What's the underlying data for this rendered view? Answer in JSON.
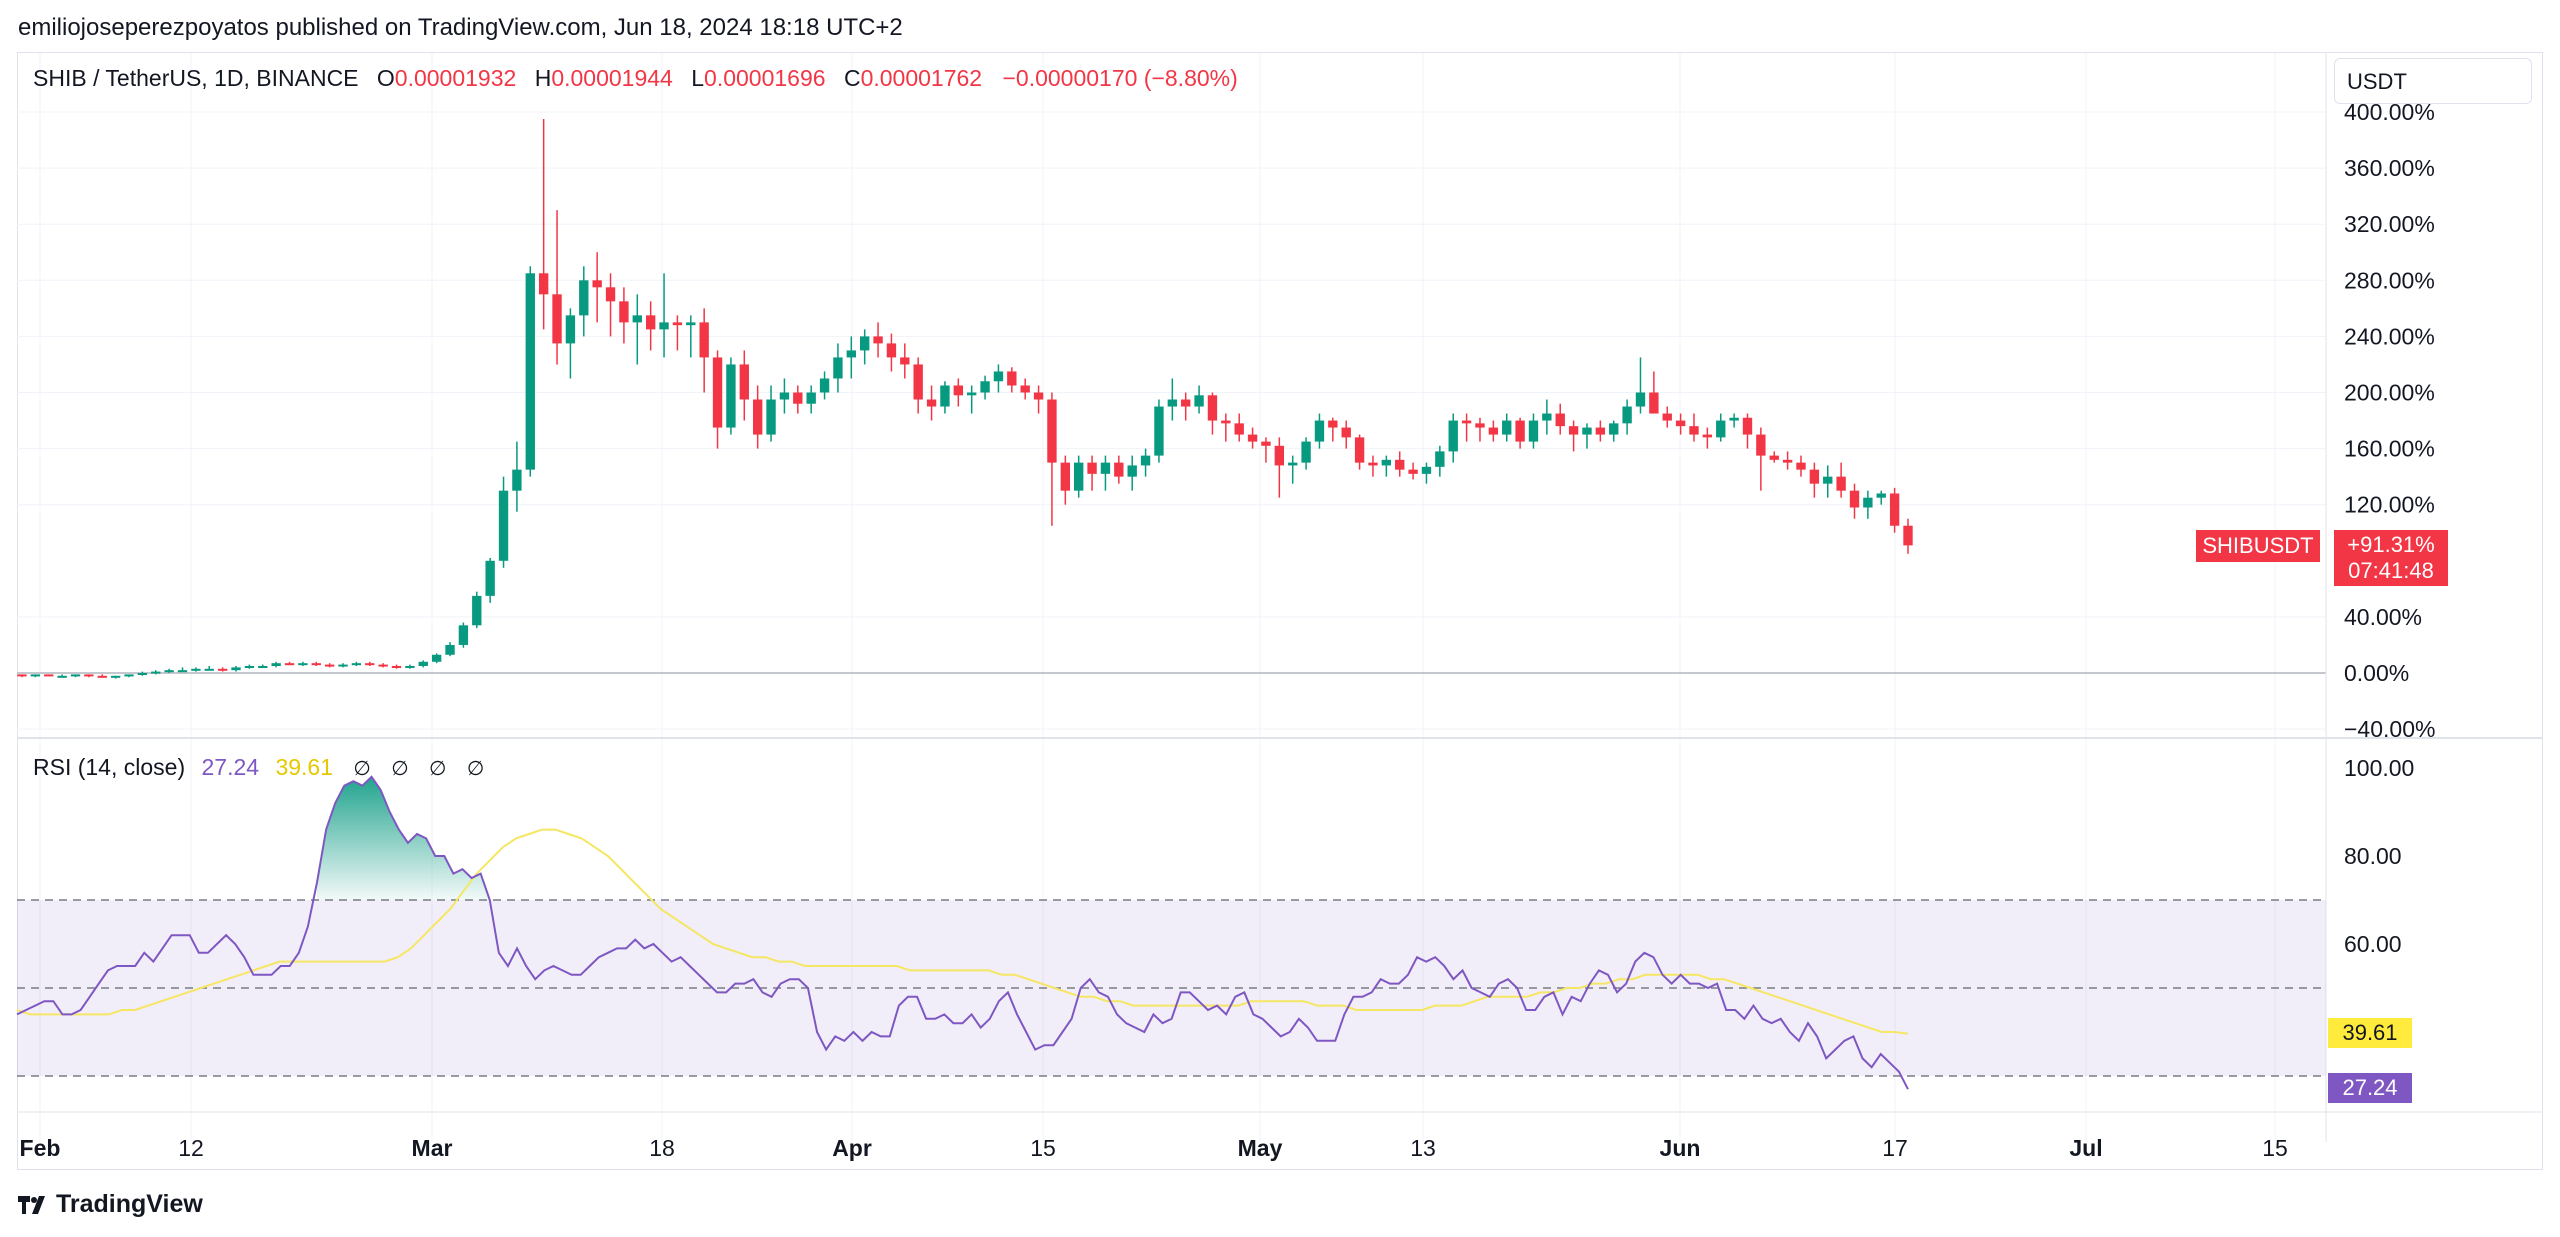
{
  "header": {
    "published": "emiliojoseperezpoyatos published on TradingView.com, Jun 18, 2024 18:18 UTC+2"
  },
  "legend": {
    "symbol": "SHIB / TetherUS, 1D, BINANCE",
    "o_key": "O",
    "o_val": "0.00001932",
    "h_key": "H",
    "h_val": "0.00001944",
    "l_key": "L",
    "l_val": "0.00001696",
    "c_key": "C",
    "c_val": "0.00001762",
    "change": "−0.00000170 (−8.80%)"
  },
  "currency": "USDT",
  "price_tag": {
    "symbol": "SHIBUSDT",
    "pct": "+91.31%",
    "countdown": "07:41:48"
  },
  "rsi_legend": {
    "name": "RSI (14, close)",
    "rsi_val": "27.24",
    "ma_val": "39.61",
    "placeholders": [
      "∅",
      "∅",
      "∅",
      "∅"
    ]
  },
  "rsi_tags": {
    "ma": "39.61",
    "rsi": "27.24"
  },
  "footer": {
    "brand": "TradingView"
  },
  "colors": {
    "up": "#089981",
    "down": "#f23645",
    "rsi": "#7e57c2",
    "rsi_ma": "#f5e663",
    "band": "#7e57c2"
  },
  "chart_data": [
    {
      "type": "candlestick",
      "title": "SHIB / TetherUS, 1D, BINANCE",
      "y_unit": "%",
      "y_ticks": [
        "400.00%",
        "360.00%",
        "320.00%",
        "280.00%",
        "240.00%",
        "200.00%",
        "160.00%",
        "120.00%",
        "40.00%",
        "0.00%",
        "−40.00%"
      ],
      "x_ticks": [
        "Feb",
        "12",
        "Mar",
        "18",
        "Apr",
        "15",
        "May",
        "13",
        "Jun",
        "17",
        "Jul",
        "15"
      ],
      "candles": [
        [
          -1,
          -1,
          -3,
          -2
        ],
        [
          -2,
          -1,
          -3,
          -1
        ],
        [
          -1,
          -1,
          -2,
          -2
        ],
        [
          -2,
          -1,
          -3,
          -2
        ],
        [
          -2,
          -1,
          -3,
          -1
        ],
        [
          -1,
          -1,
          -3,
          -2
        ],
        [
          -2,
          -1,
          -3,
          -3
        ],
        [
          -3,
          -2,
          -4,
          -2
        ],
        [
          -2,
          -1,
          -3,
          -1
        ],
        [
          -1,
          1,
          -2,
          0
        ],
        [
          0,
          2,
          -1,
          1
        ],
        [
          1,
          3,
          0,
          2
        ],
        [
          2,
          4,
          1,
          2
        ],
        [
          2,
          4,
          1,
          3
        ],
        [
          3,
          5,
          2,
          3
        ],
        [
          3,
          4,
          1,
          2
        ],
        [
          2,
          5,
          1,
          4
        ],
        [
          4,
          6,
          3,
          5
        ],
        [
          5,
          6,
          4,
          5
        ],
        [
          5,
          8,
          4,
          7
        ],
        [
          7,
          8,
          6,
          6
        ],
        [
          6,
          8,
          5,
          7
        ],
        [
          7,
          8,
          5,
          6
        ],
        [
          6,
          7,
          4,
          5
        ],
        [
          5,
          7,
          4,
          6
        ],
        [
          6,
          8,
          5,
          7
        ],
        [
          7,
          8,
          5,
          6
        ],
        [
          6,
          7,
          4,
          5
        ],
        [
          5,
          6,
          3,
          4
        ],
        [
          4,
          6,
          3,
          5
        ],
        [
          5,
          9,
          4,
          8
        ],
        [
          8,
          14,
          7,
          13
        ],
        [
          13,
          22,
          12,
          20
        ],
        [
          20,
          36,
          18,
          34
        ],
        [
          34,
          58,
          32,
          55
        ],
        [
          55,
          82,
          50,
          80
        ],
        [
          80,
          140,
          75,
          130
        ],
        [
          130,
          165,
          115,
          145
        ],
        [
          145,
          290,
          140,
          285
        ],
        [
          285,
          395,
          245,
          270
        ],
        [
          270,
          330,
          220,
          235
        ],
        [
          235,
          260,
          210,
          255
        ],
        [
          255,
          290,
          240,
          280
        ],
        [
          280,
          300,
          250,
          275
        ],
        [
          275,
          285,
          240,
          265
        ],
        [
          265,
          275,
          235,
          250
        ],
        [
          250,
          270,
          220,
          255
        ],
        [
          255,
          265,
          230,
          245
        ],
        [
          245,
          285,
          225,
          250
        ],
        [
          250,
          255,
          230,
          248
        ],
        [
          248,
          255,
          225,
          250
        ],
        [
          250,
          260,
          200,
          225
        ],
        [
          225,
          230,
          160,
          175
        ],
        [
          175,
          225,
          170,
          220
        ],
        [
          220,
          230,
          180,
          195
        ],
        [
          195,
          205,
          160,
          170
        ],
        [
          170,
          205,
          165,
          195
        ],
        [
          195,
          210,
          185,
          200
        ],
        [
          200,
          205,
          185,
          192
        ],
        [
          192,
          205,
          185,
          200
        ],
        [
          200,
          215,
          195,
          210
        ],
        [
          210,
          235,
          200,
          225
        ],
        [
          225,
          240,
          210,
          230
        ],
        [
          230,
          245,
          220,
          240
        ],
        [
          240,
          250,
          225,
          235
        ],
        [
          235,
          242,
          215,
          225
        ],
        [
          225,
          235,
          210,
          220
        ],
        [
          220,
          225,
          185,
          195
        ],
        [
          195,
          205,
          180,
          190
        ],
        [
          190,
          208,
          185,
          205
        ],
        [
          205,
          210,
          190,
          198
        ],
        [
          198,
          205,
          185,
          200
        ],
        [
          200,
          212,
          195,
          208
        ],
        [
          208,
          220,
          200,
          215
        ],
        [
          215,
          218,
          200,
          205
        ],
        [
          205,
          210,
          195,
          200
        ],
        [
          200,
          205,
          185,
          195
        ],
        [
          195,
          200,
          105,
          150
        ],
        [
          150,
          155,
          120,
          130
        ],
        [
          130,
          155,
          125,
          150
        ],
        [
          150,
          155,
          130,
          142
        ],
        [
          142,
          155,
          130,
          150
        ],
        [
          150,
          155,
          135,
          140
        ],
        [
          140,
          155,
          130,
          148
        ],
        [
          148,
          160,
          140,
          155
        ],
        [
          155,
          195,
          150,
          190
        ],
        [
          190,
          210,
          180,
          195
        ],
        [
          195,
          200,
          180,
          190
        ],
        [
          190,
          205,
          185,
          198
        ],
        [
          198,
          200,
          170,
          180
        ],
        [
          180,
          185,
          165,
          178
        ],
        [
          178,
          185,
          165,
          170
        ],
        [
          170,
          175,
          160,
          165
        ],
        [
          165,
          168,
          150,
          162
        ],
        [
          162,
          168,
          125,
          148
        ],
        [
          148,
          155,
          135,
          150
        ],
        [
          150,
          168,
          145,
          165
        ],
        [
          165,
          185,
          160,
          180
        ],
        [
          180,
          182,
          165,
          175
        ],
        [
          175,
          180,
          160,
          168
        ],
        [
          168,
          170,
          145,
          150
        ],
        [
          150,
          155,
          140,
          148
        ],
        [
          148,
          155,
          140,
          152
        ],
        [
          152,
          158,
          140,
          145
        ],
        [
          145,
          150,
          138,
          142
        ],
        [
          142,
          150,
          135,
          147
        ],
        [
          147,
          162,
          140,
          158
        ],
        [
          158,
          185,
          150,
          180
        ],
        [
          180,
          185,
          165,
          178
        ],
        [
          178,
          182,
          165,
          175
        ],
        [
          175,
          180,
          165,
          170
        ],
        [
          170,
          185,
          165,
          180
        ],
        [
          180,
          182,
          160,
          165
        ],
        [
          165,
          185,
          160,
          180
        ],
        [
          180,
          195,
          170,
          185
        ],
        [
          185,
          192,
          170,
          176
        ],
        [
          176,
          180,
          158,
          170
        ],
        [
          170,
          178,
          160,
          175
        ],
        [
          175,
          180,
          165,
          170
        ],
        [
          170,
          180,
          165,
          178
        ],
        [
          178,
          195,
          170,
          190
        ],
        [
          190,
          225,
          185,
          200
        ],
        [
          200,
          215,
          185,
          185
        ],
        [
          185,
          190,
          175,
          180
        ],
        [
          180,
          185,
          170,
          176
        ],
        [
          176,
          185,
          165,
          170
        ],
        [
          170,
          175,
          160,
          168
        ],
        [
          168,
          185,
          165,
          180
        ],
        [
          180,
          185,
          175,
          182
        ],
        [
          182,
          185,
          160,
          170
        ],
        [
          170,
          175,
          130,
          155
        ],
        [
          155,
          158,
          150,
          152
        ],
        [
          152,
          158,
          145,
          150
        ],
        [
          150,
          155,
          140,
          145
        ],
        [
          145,
          150,
          125,
          135
        ],
        [
          135,
          148,
          125,
          140
        ],
        [
          140,
          150,
          125,
          130
        ],
        [
          130,
          135,
          110,
          118
        ],
        [
          118,
          130,
          110,
          125
        ],
        [
          125,
          130,
          120,
          128
        ],
        [
          128,
          132,
          100,
          105
        ],
        [
          105,
          110,
          85,
          91
        ]
      ]
    },
    {
      "type": "line",
      "title": "RSI (14, close)",
      "y_ticks": [
        "100.00",
        "80.00",
        "60.00"
      ],
      "bands": [
        70,
        50,
        30
      ],
      "series": [
        {
          "name": "RSI",
          "values": [
            44,
            45,
            46,
            47,
            47,
            44,
            44,
            45,
            48,
            51,
            54,
            55,
            55,
            55,
            58,
            56,
            59,
            62,
            62,
            62,
            58,
            58,
            60,
            62,
            60,
            57,
            53,
            53,
            53,
            55,
            55,
            58,
            64,
            74,
            86,
            92,
            96,
            97,
            96,
            98,
            95,
            90,
            86,
            83,
            85,
            84,
            80,
            80,
            76,
            77,
            75,
            76,
            70,
            58,
            55,
            59,
            55,
            52,
            54,
            55,
            54,
            53,
            53,
            55,
            57,
            58,
            59,
            59,
            61,
            59,
            60,
            58,
            56,
            57,
            55,
            53,
            51,
            49,
            49,
            51,
            51,
            52,
            49,
            48,
            51,
            52,
            52,
            50,
            40,
            36,
            39,
            38,
            40,
            38,
            40,
            39,
            39,
            46,
            48,
            48,
            43,
            43,
            44,
            42,
            42,
            44,
            41,
            43,
            47,
            49,
            44,
            40,
            36,
            37,
            37,
            40,
            43,
            50,
            52,
            49,
            48,
            44,
            42,
            41,
            40,
            44,
            42,
            43,
            49,
            49,
            47,
            45,
            46,
            44,
            48,
            49,
            44,
            43,
            41,
            39,
            40,
            43,
            41,
            38,
            38,
            38,
            44,
            48,
            48,
            49,
            52,
            51,
            51,
            53,
            57,
            56,
            57,
            55,
            52,
            54,
            50,
            49,
            48,
            51,
            52,
            50,
            45,
            45,
            48,
            49,
            44,
            48,
            47,
            51,
            54,
            53,
            49,
            51,
            56,
            58,
            57,
            53,
            51,
            53,
            51,
            51,
            50,
            51,
            45,
            45,
            43,
            46,
            43,
            42,
            43,
            40,
            38,
            42,
            39,
            34,
            36,
            38,
            39,
            34,
            32,
            35,
            33,
            31,
            27
          ],
          "color": "#7e57c2"
        },
        {
          "name": "RSI MA",
          "values": [
            45,
            44,
            44,
            44,
            44,
            44,
            44,
            44,
            45,
            45,
            46,
            47,
            48,
            49,
            50,
            51,
            52,
            53,
            54,
            55,
            56,
            56,
            56,
            56,
            56,
            56,
            56,
            56,
            56,
            57,
            59,
            62,
            65,
            68,
            72,
            76,
            79,
            82,
            84,
            85,
            86,
            86,
            85,
            84,
            82,
            80,
            77,
            74,
            71,
            68,
            66,
            64,
            62,
            60,
            59,
            58,
            57,
            57,
            56,
            56,
            55,
            55,
            55,
            55,
            55,
            55,
            55,
            55,
            54,
            54,
            54,
            54,
            54,
            54,
            54,
            53,
            53,
            52,
            51,
            50,
            49,
            48,
            48,
            47,
            47,
            46,
            46,
            46,
            46,
            46,
            46,
            46,
            46,
            46,
            47,
            47,
            47,
            47,
            47,
            46,
            46,
            46,
            45,
            45,
            45,
            45,
            45,
            45,
            46,
            46,
            46,
            47,
            48,
            48,
            48,
            48,
            49,
            49,
            50,
            50,
            51,
            51,
            52,
            52,
            53,
            53,
            53,
            53,
            53,
            52,
            52,
            51,
            50,
            49,
            48,
            47,
            46,
            45,
            44,
            43,
            42,
            41,
            40,
            40,
            39.61
          ],
          "color": "#f5e663"
        }
      ]
    }
  ]
}
